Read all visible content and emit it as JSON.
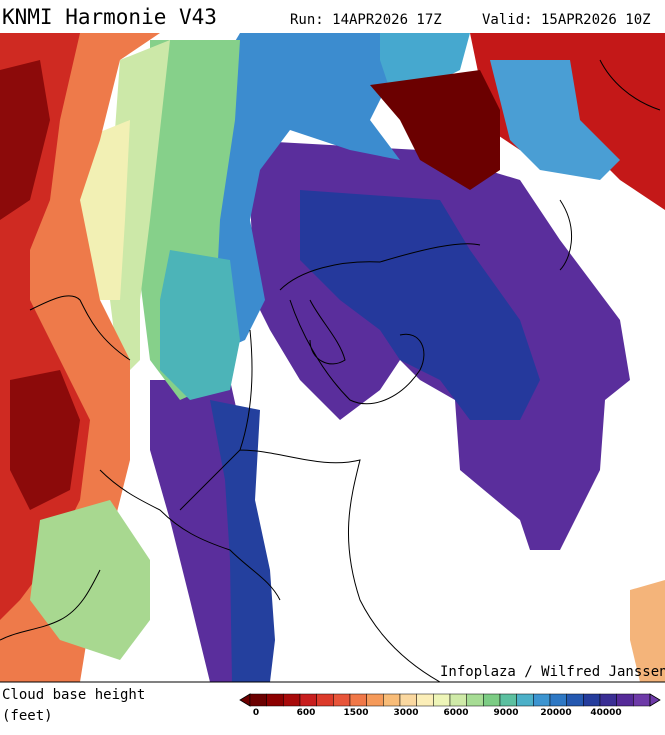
{
  "header": {
    "title": "KNMI Harmonie V43",
    "run": "Run: 14APR2026 17Z",
    "valid": "Valid: 15APR2026 10Z"
  },
  "map": {
    "credit": "Infoplaza / Wilfred Janssen"
  },
  "legend": {
    "label_line1": "Cloud base height",
    "label_line2": "(feet)",
    "colors": [
      "#6b0000",
      "#8c0000",
      "#a80a0a",
      "#c81e1e",
      "#dc3a2a",
      "#e8553a",
      "#f07848",
      "#f59a5a",
      "#f8bc78",
      "#fad8a0",
      "#fbeeb8",
      "#eef5b8",
      "#cfeaa8",
      "#a6dc94",
      "#7ccc84",
      "#5cc0a0",
      "#4cb0c8",
      "#3c94d0",
      "#2e78c4",
      "#2458b0",
      "#243c9c",
      "#3a2e94",
      "#552a98",
      "#6e3aa8"
    ],
    "ticks": [
      "0",
      "600",
      "1500",
      "3000",
      "6000",
      "9000",
      "20000",
      "40000"
    ]
  }
}
